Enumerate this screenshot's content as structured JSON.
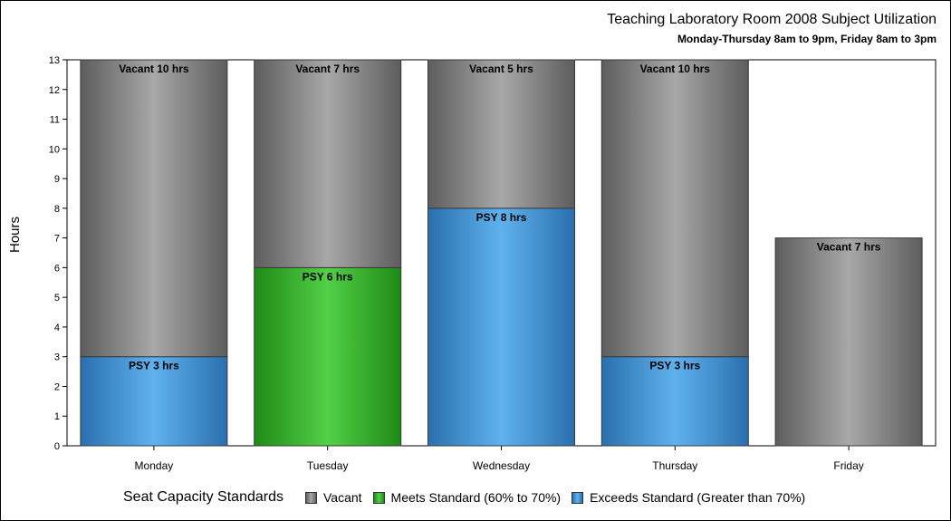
{
  "chart_data": {
    "type": "bar",
    "stacked": true,
    "title": "Teaching Laboratory Room 2008 Subject Utilization",
    "subtitle": "Monday-Thursday 8am to 9pm, Friday 8am to 3pm",
    "xlabel": "",
    "ylabel": "Hours",
    "ylim": [
      0,
      13
    ],
    "yticks": [
      0,
      1,
      2,
      3,
      4,
      5,
      6,
      7,
      8,
      9,
      10,
      11,
      12,
      13
    ],
    "grid": false,
    "legend_title": "Seat Capacity Standards",
    "legend_position": "bottom",
    "categories": [
      "Monday",
      "Tuesday",
      "Wednesday",
      "Thursday",
      "Friday"
    ],
    "legend": [
      {
        "label": "Vacant",
        "color": "#8c8c8c"
      },
      {
        "label": "Meets Standard (60% to 70%)",
        "color": "#3cb331"
      },
      {
        "label": "Exceeds Standard (Greater than 70%)",
        "color": "#4a9ede"
      }
    ],
    "bars": [
      {
        "category": "Monday",
        "segments": [
          {
            "value": 3,
            "status": "exceeds",
            "label": "PSY 3 hrs"
          },
          {
            "value": 10,
            "status": "vacant",
            "label": "Vacant 10 hrs"
          }
        ]
      },
      {
        "category": "Tuesday",
        "segments": [
          {
            "value": 6,
            "status": "meets",
            "label": "PSY 6 hrs"
          },
          {
            "value": 7,
            "status": "vacant",
            "label": "Vacant 7 hrs"
          }
        ]
      },
      {
        "category": "Wednesday",
        "segments": [
          {
            "value": 8,
            "status": "exceeds",
            "label": "PSY 8 hrs"
          },
          {
            "value": 5,
            "status": "vacant",
            "label": "Vacant 5 hrs"
          }
        ]
      },
      {
        "category": "Thursday",
        "segments": [
          {
            "value": 3,
            "status": "exceeds",
            "label": "PSY 3 hrs"
          },
          {
            "value": 10,
            "status": "vacant",
            "label": "Vacant 10 hrs"
          }
        ]
      },
      {
        "category": "Friday",
        "segments": [
          {
            "value": 7,
            "status": "vacant",
            "label": "Vacant 7 hrs"
          }
        ]
      }
    ]
  }
}
